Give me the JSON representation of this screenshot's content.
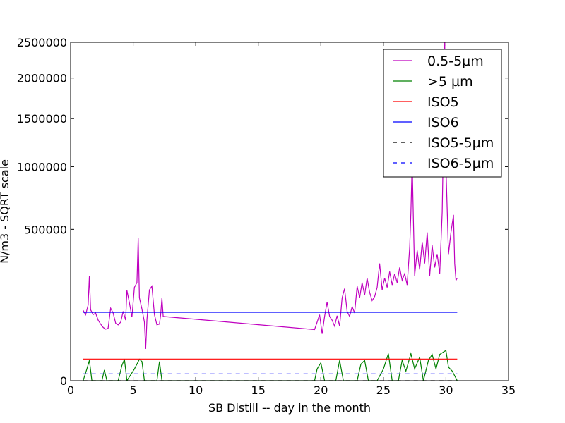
{
  "chart_data": {
    "type": "line",
    "xlabel": "SB Distill -- day in the month",
    "ylabel": "N/m3 - SQRT scale",
    "y_scale": "sqrt",
    "xlim": [
      0,
      35
    ],
    "ylim": [
      0,
      2500000
    ],
    "x_ticks": [
      0,
      5,
      10,
      15,
      20,
      25,
      30,
      35
    ],
    "x_tick_labels": [
      "0",
      "5",
      "10",
      "15",
      "20",
      "25",
      "30",
      "35"
    ],
    "y_ticks": [
      0,
      500000,
      1000000,
      1500000,
      2000000,
      2500000
    ],
    "y_tick_labels": [
      "0",
      "500000",
      "1000000",
      "1500000",
      "2000000",
      "2500000"
    ],
    "legend_position": "top-right",
    "series": [
      {
        "name": "0.5-5µm",
        "color": "#bf00bf",
        "style": "solid",
        "points": [
          [
            1.0,
            108000
          ],
          [
            1.2,
            95000
          ],
          [
            1.4,
            125000
          ],
          [
            1.5,
            240000
          ],
          [
            1.6,
            110000
          ],
          [
            1.8,
            95000
          ],
          [
            2.0,
            100000
          ],
          [
            2.2,
            80000
          ],
          [
            2.4,
            70000
          ],
          [
            2.6,
            62000
          ],
          [
            2.8,
            58000
          ],
          [
            3.0,
            60000
          ],
          [
            3.2,
            115000
          ],
          [
            3.4,
            100000
          ],
          [
            3.6,
            72000
          ],
          [
            3.8,
            68000
          ],
          [
            4.0,
            75000
          ],
          [
            4.2,
            105000
          ],
          [
            4.4,
            80000
          ],
          [
            4.5,
            178000
          ],
          [
            4.7,
            132000
          ],
          [
            4.9,
            88000
          ],
          [
            5.1,
            190000
          ],
          [
            5.3,
            210000
          ],
          [
            5.4,
            445000
          ],
          [
            5.5,
            150000
          ],
          [
            5.7,
            112000
          ],
          [
            5.9,
            75000
          ],
          [
            6.0,
            22000
          ],
          [
            6.1,
            82000
          ],
          [
            6.3,
            180000
          ],
          [
            6.5,
            195000
          ],
          [
            6.7,
            95000
          ],
          [
            6.9,
            68000
          ],
          [
            7.1,
            70000
          ],
          [
            7.2,
            95000
          ],
          [
            7.3,
            150000
          ],
          [
            7.4,
            90000
          ],
          [
            19.5,
            57000
          ],
          [
            19.7,
            75000
          ],
          [
            19.9,
            95000
          ],
          [
            20.1,
            48000
          ],
          [
            20.3,
            90000
          ],
          [
            20.5,
            135000
          ],
          [
            20.7,
            90000
          ],
          [
            20.9,
            80000
          ],
          [
            21.1,
            65000
          ],
          [
            21.3,
            92000
          ],
          [
            21.5,
            65000
          ],
          [
            21.7,
            150000
          ],
          [
            21.9,
            185000
          ],
          [
            22.1,
            105000
          ],
          [
            22.3,
            90000
          ],
          [
            22.5,
            120000
          ],
          [
            22.7,
            100000
          ],
          [
            22.9,
            195000
          ],
          [
            23.1,
            150000
          ],
          [
            23.3,
            210000
          ],
          [
            23.5,
            160000
          ],
          [
            23.7,
            230000
          ],
          [
            23.9,
            170000
          ],
          [
            24.1,
            140000
          ],
          [
            24.3,
            155000
          ],
          [
            24.5,
            190000
          ],
          [
            24.7,
            300000
          ],
          [
            24.9,
            180000
          ],
          [
            25.1,
            230000
          ],
          [
            25.3,
            190000
          ],
          [
            25.5,
            260000
          ],
          [
            25.7,
            200000
          ],
          [
            25.9,
            250000
          ],
          [
            26.1,
            210000
          ],
          [
            26.3,
            280000
          ],
          [
            26.5,
            220000
          ],
          [
            26.7,
            250000
          ],
          [
            26.9,
            200000
          ],
          [
            27.1,
            390000
          ],
          [
            27.2,
            620000
          ],
          [
            27.3,
            1050000
          ],
          [
            27.4,
            550000
          ],
          [
            27.5,
            240000
          ],
          [
            27.7,
            370000
          ],
          [
            27.9,
            270000
          ],
          [
            28.1,
            420000
          ],
          [
            28.3,
            300000
          ],
          [
            28.5,
            480000
          ],
          [
            28.7,
            240000
          ],
          [
            28.9,
            400000
          ],
          [
            29.1,
            280000
          ],
          [
            29.3,
            350000
          ],
          [
            29.5,
            250000
          ],
          [
            29.7,
            620000
          ],
          [
            29.8,
            1300000
          ],
          [
            29.9,
            2500000
          ],
          [
            30.0,
            1000000
          ],
          [
            30.2,
            350000
          ],
          [
            30.4,
            480000
          ],
          [
            30.6,
            600000
          ],
          [
            30.7,
            300000
          ],
          [
            30.8,
            220000
          ],
          [
            30.9,
            230000
          ]
        ]
      },
      {
        "name": ">5 µm",
        "color": "#008000",
        "style": "solid",
        "points": [
          [
            1.0,
            0
          ],
          [
            1.3,
            3000
          ],
          [
            1.5,
            9000
          ],
          [
            1.7,
            0
          ],
          [
            2.5,
            0
          ],
          [
            2.7,
            2500
          ],
          [
            2.9,
            0
          ],
          [
            3.8,
            0
          ],
          [
            4.1,
            5000
          ],
          [
            4.3,
            10000
          ],
          [
            4.5,
            0
          ],
          [
            5.1,
            3000
          ],
          [
            5.3,
            6000
          ],
          [
            5.5,
            10000
          ],
          [
            5.7,
            8000
          ],
          [
            5.9,
            0
          ],
          [
            6.9,
            0
          ],
          [
            7.1,
            8000
          ],
          [
            7.3,
            0
          ],
          [
            19.5,
            0
          ],
          [
            19.7,
            3000
          ],
          [
            20.0,
            7000
          ],
          [
            20.3,
            0
          ],
          [
            21.2,
            0
          ],
          [
            21.5,
            9000
          ],
          [
            21.8,
            0
          ],
          [
            22.9,
            0
          ],
          [
            23.2,
            6000
          ],
          [
            23.5,
            9000
          ],
          [
            23.8,
            0
          ],
          [
            24.5,
            0
          ],
          [
            25.0,
            3000
          ],
          [
            25.4,
            16000
          ],
          [
            25.7,
            0
          ],
          [
            26.2,
            0
          ],
          [
            26.5,
            9000
          ],
          [
            26.8,
            2000
          ],
          [
            27.2,
            16000
          ],
          [
            27.5,
            3000
          ],
          [
            27.9,
            12000
          ],
          [
            28.2,
            0
          ],
          [
            28.6,
            9000
          ],
          [
            28.9,
            15000
          ],
          [
            29.2,
            3000
          ],
          [
            29.5,
            15000
          ],
          [
            29.8,
            18000
          ],
          [
            30.0,
            20000
          ],
          [
            30.2,
            4000
          ],
          [
            30.5,
            2000
          ],
          [
            30.9,
            0
          ]
        ]
      },
      {
        "name": "ISO5",
        "color": "#ff0000",
        "style": "solid",
        "points": [
          [
            1.0,
            10200
          ],
          [
            30.9,
            10200
          ]
        ]
      },
      {
        "name": "ISO6",
        "color": "#0000ff",
        "style": "solid",
        "points": [
          [
            1.0,
            102000
          ],
          [
            30.9,
            102000
          ]
        ]
      },
      {
        "name": "ISO5-5µm",
        "color": "#000000",
        "style": "dashed",
        "points": [
          [
            1.0,
            0
          ],
          [
            30.9,
            0
          ]
        ]
      },
      {
        "name": "ISO6-5µm",
        "color": "#0000ff",
        "style": "dashed",
        "points": [
          [
            1.0,
            1000
          ],
          [
            30.9,
            1000
          ]
        ]
      }
    ]
  }
}
